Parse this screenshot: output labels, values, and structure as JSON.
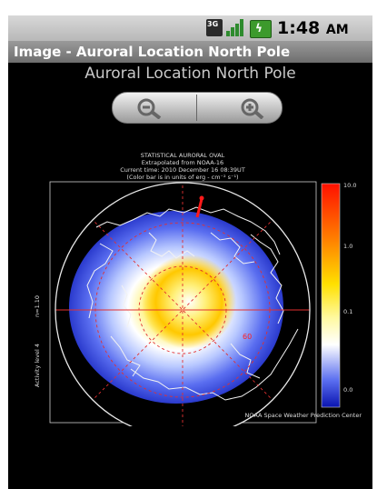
{
  "status_bar": {
    "net_label": "3G",
    "time": "1:48",
    "ampm": "AM"
  },
  "titlebar": {
    "title": "Image - Auroral Location North Pole"
  },
  "heading": "Auroral Location North Pole",
  "zoom": {
    "out_icon": "zoom-out-icon",
    "in_icon": "zoom-in-icon"
  },
  "map": {
    "title1": "STATISTICAL AURORAL OVAL",
    "title2": "Extrapolated from NOAA-16",
    "title3": "Current time: 2010 December 16 08:39UT",
    "title4": "(Color bar is in units of erg - cm⁻² s⁻¹)",
    "side1": "n=1.10",
    "side2": "Activity level 4",
    "lat_label": "60",
    "credit": "NOAA Space Weather Prediction Center",
    "scale": [
      "10.0",
      "1.0",
      "0.1",
      "0.0"
    ],
    "colors": {
      "peak": "#ff2a00",
      "mid": "#ffe000",
      "low": "#ffffff",
      "min": "#1020c0"
    }
  }
}
